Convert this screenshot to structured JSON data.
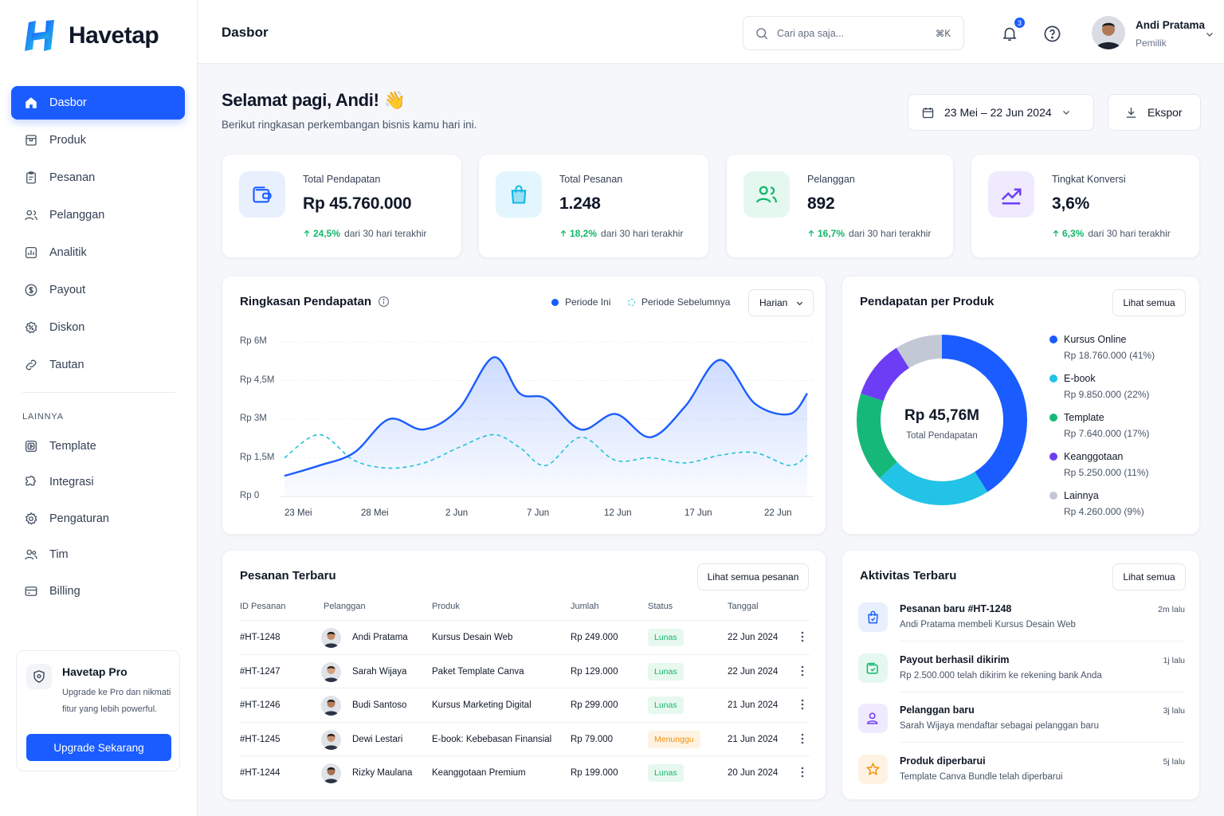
{
  "brand": {
    "name": "Havetap"
  },
  "sidebar": {
    "items": [
      {
        "label": "Dasbor",
        "icon": "home-icon",
        "active": true
      },
      {
        "label": "Produk",
        "icon": "box-icon"
      },
      {
        "label": "Pesanan",
        "icon": "clipboard-icon"
      },
      {
        "label": "Pelanggan",
        "icon": "users-icon"
      },
      {
        "label": "Analitik",
        "icon": "chart-icon"
      },
      {
        "label": "Payout",
        "icon": "dollar-icon"
      },
      {
        "label": "Diskon",
        "icon": "discount-icon"
      },
      {
        "label": "Tautan",
        "icon": "link-icon"
      }
    ],
    "section_label": "LAINNYA",
    "items2": [
      {
        "label": "Template",
        "icon": "template-icon"
      },
      {
        "label": "Integrasi",
        "icon": "puzzle-icon"
      },
      {
        "label": "Pengaturan",
        "icon": "gear-icon"
      },
      {
        "label": "Tim",
        "icon": "team-icon"
      },
      {
        "label": "Billing",
        "icon": "card-icon"
      }
    ],
    "pro": {
      "title": "Havetap Pro",
      "desc": "Upgrade ke Pro dan nikmati fitur yang lebih powerful.",
      "button": "Upgrade Sekarang"
    }
  },
  "header": {
    "title": "Dasbor",
    "search_placeholder": "Cari apa saja...",
    "search_shortcut": "⌘K",
    "notif_count": "3",
    "user_name": "Andi Pratama",
    "user_role": "Pemilik"
  },
  "greeting": {
    "title": "Selamat pagi, Andi! 👋",
    "subtitle": "Berikut ringkasan perkembangan bisnis kamu hari ini.",
    "date_range": "23 Mei – 22 Jun 2024",
    "export": "Ekspor"
  },
  "stats": [
    {
      "label": "Total Pendapatan",
      "value": "Rp 45.760.000",
      "change": "24,5%",
      "period": "dari 30 hari terakhir",
      "icon": "wallet-icon",
      "bg": "#e8f0fe",
      "color": "#1a5cff"
    },
    {
      "label": "Total Pesanan",
      "value": "1.248",
      "change": "18,2%",
      "period": "dari 30 hari terakhir",
      "icon": "bag-icon",
      "bg": "#e3f6fd",
      "color": "#14b8e6"
    },
    {
      "label": "Pelanggan",
      "value": "892",
      "change": "16,7%",
      "period": "dari 30 hari terakhir",
      "icon": "users-icon",
      "bg": "#e5f8ef",
      "color": "#12b76a"
    },
    {
      "label": "Tingkat Konversi",
      "value": "3,6%",
      "change": "6,3%",
      "period": "dari 30 hari terakhir",
      "icon": "trend-icon",
      "bg": "#efeafd",
      "color": "#6d3df5"
    }
  ],
  "revenue_chart": {
    "title": "Ringkasan Pendapatan",
    "legend_current": "Periode Ini",
    "legend_previous": "Periode Sebelumnya",
    "interval": "Harian",
    "colors": {
      "current": "#1a5cff",
      "previous": "#22c3d6"
    }
  },
  "chart_data": {
    "type": "line",
    "y_ticks": [
      "Rp 6M",
      "Rp 4,5M",
      "Rp 3M",
      "Rp 1,5M",
      "Rp 0"
    ],
    "x_ticks": [
      "23 Mei",
      "28 Mei",
      "2 Jun",
      "7 Jun",
      "12 Jun",
      "17 Jun",
      "22 Jun"
    ],
    "ylim": [
      0,
      6
    ],
    "x": [
      0,
      2,
      4,
      6,
      8,
      10,
      12,
      13.5,
      15,
      17,
      19,
      21,
      23,
      25,
      27,
      29,
      30
    ],
    "series": [
      {
        "name": "Periode Ini",
        "values": [
          0.8,
          1.2,
          1.7,
          3.0,
          2.6,
          3.4,
          5.4,
          4.0,
          3.8,
          2.6,
          3.2,
          2.3,
          3.5,
          5.3,
          3.6,
          3.2,
          4.0
        ]
      },
      {
        "name": "Periode Sebelumnya",
        "values": [
          1.5,
          2.4,
          1.4,
          1.1,
          1.3,
          1.9,
          2.4,
          1.9,
          1.2,
          2.3,
          1.4,
          1.5,
          1.3,
          1.6,
          1.7,
          1.2,
          1.6
        ]
      }
    ]
  },
  "product_revenue": {
    "title": "Pendapatan per Produk",
    "view_all": "Lihat semua",
    "total": "Rp 45,76M",
    "total_label": "Total Pendapatan",
    "items": [
      {
        "name": "Kursus Online",
        "value": "Rp 18.760.000 (41%)",
        "pct": 41,
        "color": "#1a5cff"
      },
      {
        "name": "E-book",
        "value": "Rp 9.850.000 (22%)",
        "pct": 22,
        "color": "#22c3e6"
      },
      {
        "name": "Template",
        "value": "Rp 7.640.000 (17%)",
        "pct": 17,
        "color": "#16b87a"
      },
      {
        "name": "Keanggotaan",
        "value": "Rp 5.250.000 (11%)",
        "pct": 11,
        "color": "#6d3df5"
      },
      {
        "name": "Lainnya",
        "value": "Rp 4.260.000 (9%)",
        "pct": 9,
        "color": "#c3c9d4"
      }
    ]
  },
  "orders": {
    "title": "Pesanan Terbaru",
    "view_all": "Lihat semua pesanan",
    "columns": [
      "ID Pesanan",
      "Pelanggan",
      "Produk",
      "Jumlah",
      "Status",
      "Tanggal"
    ],
    "rows": [
      {
        "id": "#HT-1248",
        "customer": "Andi Pratama",
        "product": "Kursus Desain Web",
        "amount": "Rp 249.000",
        "status": "Lunas",
        "status_type": "paid",
        "date": "22 Jun 2024"
      },
      {
        "id": "#HT-1247",
        "customer": "Sarah Wijaya",
        "product": "Paket Template Canva",
        "amount": "Rp 129.000",
        "status": "Lunas",
        "status_type": "paid",
        "date": "22 Jun 2024"
      },
      {
        "id": "#HT-1246",
        "customer": "Budi Santoso",
        "product": "Kursus Marketing Digital",
        "amount": "Rp 299.000",
        "status": "Lunas",
        "status_type": "paid",
        "date": "21 Jun 2024"
      },
      {
        "id": "#HT-1245",
        "customer": "Dewi Lestari",
        "product": "E-book: Kebebasan Finansial",
        "amount": "Rp 79.000",
        "status": "Menunggu",
        "status_type": "pending",
        "date": "21 Jun 2024"
      },
      {
        "id": "#HT-1244",
        "customer": "Rizky Maulana",
        "product": "Keanggotaan Premium",
        "amount": "Rp 199.000",
        "status": "Lunas",
        "status_type": "paid",
        "date": "20 Jun 2024"
      }
    ]
  },
  "activity": {
    "title": "Aktivitas Terbaru",
    "view_all": "Lihat semua",
    "items": [
      {
        "title": "Pesanan baru #HT-1248",
        "desc": "Andi Pratama membeli Kursus Desain Web",
        "time": "2m lalu",
        "icon": "bag-icon",
        "bg": "#e8f0fe",
        "color": "#1a5cff"
      },
      {
        "title": "Payout berhasil dikirim",
        "desc": "Rp 2.500.000 telah dikirim ke rekening bank Anda",
        "time": "1j lalu",
        "icon": "wallet-icon",
        "bg": "#e5f8ef",
        "color": "#12b76a"
      },
      {
        "title": "Pelanggan baru",
        "desc": "Sarah Wijaya mendaftar sebagai pelanggan baru",
        "time": "3j lalu",
        "icon": "user-icon",
        "bg": "#efeafd",
        "color": "#6d3df5"
      },
      {
        "title": "Produk diperbarui",
        "desc": "Template Canva Bundle telah diperbarui",
        "time": "5j lalu",
        "icon": "star-icon",
        "bg": "#fef3e2",
        "color": "#f79009"
      }
    ]
  }
}
